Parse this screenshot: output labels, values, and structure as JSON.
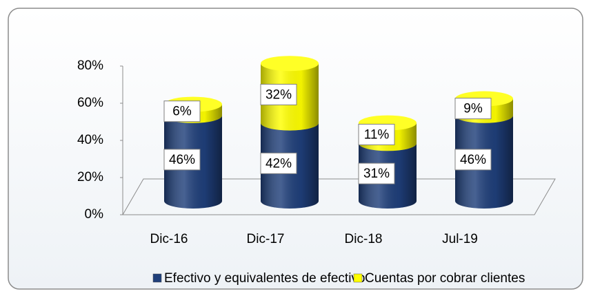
{
  "chart_data": {
    "type": "bar3d_stacked",
    "categories": [
      "Dic-16",
      "Dic-17",
      "Dic-18",
      "Jul-19"
    ],
    "series": [
      {
        "name": "Efectivo y equivalentes de efectivo",
        "color": "#1f3f7a",
        "values": [
          46,
          42,
          31,
          46
        ],
        "value_labels": [
          "46%",
          "42%",
          "31%",
          "46%"
        ]
      },
      {
        "name": "Cuentas por cobrar clientes",
        "color": "#ffff00",
        "values": [
          6,
          32,
          11,
          9
        ],
        "value_labels": [
          "6%",
          "32%",
          "11%",
          "9%"
        ]
      }
    ],
    "ylim": [
      0,
      80
    ],
    "yticks": [
      {
        "value": 0,
        "label": "0%"
      },
      {
        "value": 20,
        "label": "20%"
      },
      {
        "value": 40,
        "label": "40%"
      },
      {
        "value": 60,
        "label": "60%"
      },
      {
        "value": 80,
        "label": "80%"
      }
    ],
    "legend": "bottom"
  }
}
